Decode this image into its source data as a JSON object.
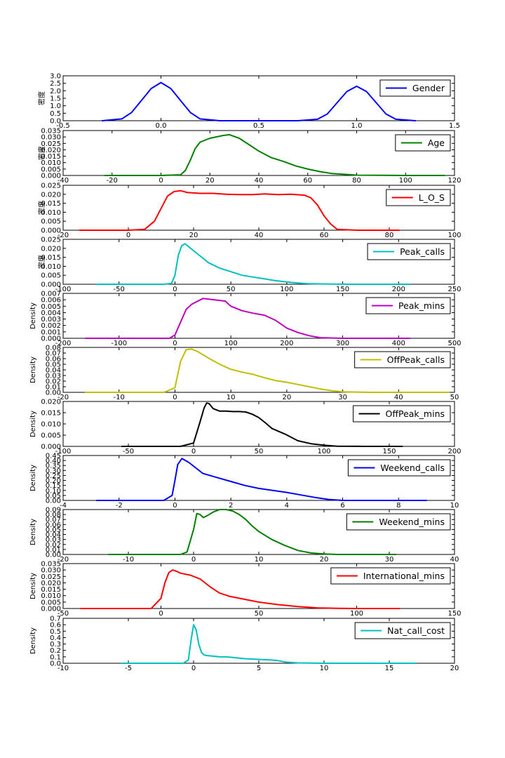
{
  "chart_data": [
    {
      "type": "line",
      "name": "Gender",
      "ylabel": "密度",
      "color": "#0000ff",
      "xlim": [
        -0.5,
        1.5
      ],
      "ylim": [
        0,
        3.0
      ],
      "xticks": [
        -0.5,
        0.0,
        0.5,
        1.0,
        1.5
      ],
      "xtick_labels": [
        "-0.5",
        "0.0",
        "0.5",
        "1.0",
        "1.5"
      ],
      "yticks": [
        0,
        0.5,
        1.0,
        1.5,
        2.0,
        2.5,
        3.0
      ],
      "ytick_labels": [
        "0.0",
        "0.5",
        "1.0",
        "1.5",
        "2.0",
        "2.5",
        "3.0"
      ],
      "legend": "Gender",
      "x": [
        -0.3,
        -0.2,
        -0.15,
        -0.1,
        -0.05,
        0.0,
        0.05,
        0.1,
        0.15,
        0.2,
        0.3,
        0.4,
        0.5,
        0.6,
        0.7,
        0.8,
        0.85,
        0.9,
        0.95,
        1.0,
        1.05,
        1.1,
        1.15,
        1.2,
        1.3
      ],
      "y": [
        0.0,
        0.12,
        0.55,
        1.35,
        2.15,
        2.55,
        2.15,
        1.35,
        0.55,
        0.12,
        0.0,
        0.0,
        0.0,
        0.0,
        0.0,
        0.1,
        0.45,
        1.2,
        1.95,
        2.3,
        1.95,
        1.2,
        0.45,
        0.1,
        0.0
      ]
    },
    {
      "type": "line",
      "name": "Age",
      "ylabel": "密度",
      "color": "#008000",
      "xlim": [
        -40,
        120
      ],
      "ylim": [
        0,
        0.035
      ],
      "xticks": [
        -40,
        -20,
        0,
        20,
        40,
        60,
        80,
        100,
        120
      ],
      "xtick_labels": [
        "-40",
        "-20",
        "0",
        "20",
        "40",
        "60",
        "80",
        "100",
        "120"
      ],
      "yticks": [
        0,
        0.005,
        0.01,
        0.015,
        0.02,
        0.025,
        0.03,
        0.035
      ],
      "ytick_labels": [
        "0.000",
        "0.005",
        "0.010",
        "0.015",
        "0.020",
        "0.025",
        "0.030",
        "0.035"
      ],
      "legend": "Age",
      "x": [
        -23,
        0,
        8,
        10,
        12,
        14,
        16,
        20,
        25,
        28,
        32,
        36,
        40,
        45,
        50,
        55,
        60,
        65,
        70,
        80,
        90,
        100,
        116
      ],
      "y": [
        0,
        0,
        0.0005,
        0.004,
        0.012,
        0.021,
        0.026,
        0.029,
        0.031,
        0.0318,
        0.029,
        0.024,
        0.019,
        0.014,
        0.011,
        0.0075,
        0.005,
        0.003,
        0.0015,
        0.0003,
        0.0001,
        0,
        0
      ]
    },
    {
      "type": "line",
      "name": "L_O_S",
      "ylabel": "密度",
      "color": "#ff0000",
      "xlim": [
        -20,
        100
      ],
      "ylim": [
        0,
        0.025
      ],
      "xticks": [
        -20,
        0,
        20,
        40,
        60,
        80,
        100
      ],
      "xtick_labels": [
        "-20",
        "0",
        "20",
        "40",
        "60",
        "80",
        "100"
      ],
      "yticks": [
        0,
        0.005,
        0.01,
        0.015,
        0.02,
        0.025
      ],
      "ytick_labels": [
        "0.000",
        "0.005",
        "0.010",
        "0.015",
        "0.020",
        "0.025"
      ],
      "legend": "L_O_S",
      "x": [
        -15,
        0,
        5,
        8,
        10,
        12,
        14,
        16,
        18,
        22,
        26,
        30,
        34,
        38,
        42,
        46,
        50,
        54,
        56,
        58,
        60,
        62,
        64,
        70,
        83
      ],
      "y": [
        0,
        0,
        0.0005,
        0.005,
        0.012,
        0.019,
        0.0215,
        0.022,
        0.021,
        0.0205,
        0.0205,
        0.02,
        0.0198,
        0.0198,
        0.0202,
        0.0198,
        0.02,
        0.0195,
        0.018,
        0.014,
        0.008,
        0.0035,
        0.0005,
        0,
        0
      ]
    },
    {
      "type": "line",
      "name": "Peak_calls",
      "ylabel": "密度",
      "color": "#00bfbf",
      "xlim": [
        -100,
        250
      ],
      "ylim": [
        0,
        0.025
      ],
      "xticks": [
        -100,
        -50,
        0,
        50,
        100,
        150,
        200,
        250
      ],
      "xtick_labels": [
        "-100",
        "-50",
        "0",
        "50",
        "100",
        "150",
        "200",
        "250"
      ],
      "yticks": [
        0,
        0.005,
        0.01,
        0.015,
        0.02,
        0.025
      ],
      "ytick_labels": [
        "0.000",
        "0.005",
        "0.010",
        "0.015",
        "0.020",
        "0.025"
      ],
      "legend": "Peak_calls",
      "x": [
        -70,
        -10,
        -3,
        0,
        3,
        6,
        9,
        12,
        18,
        25,
        30,
        40,
        50,
        60,
        70,
        80,
        90,
        100,
        110,
        120,
        140,
        160,
        210
      ],
      "y": [
        0,
        0,
        0.0005,
        0.005,
        0.016,
        0.0215,
        0.0225,
        0.021,
        0.018,
        0.0145,
        0.012,
        0.009,
        0.007,
        0.005,
        0.004,
        0.003,
        0.002,
        0.0013,
        0.0007,
        0.0003,
        0.0001,
        0,
        0
      ]
    },
    {
      "type": "line",
      "name": "Peak_mins",
      "ylabel": "Density",
      "color": "#bf00bf",
      "xlim": [
        -200,
        500
      ],
      "ylim": [
        0,
        0.007
      ],
      "xticks": [
        -200,
        -100,
        0,
        100,
        200,
        300,
        400,
        500
      ],
      "xtick_labels": [
        "-200",
        "-100",
        "0",
        "100",
        "200",
        "300",
        "400",
        "500"
      ],
      "yticks": [
        0,
        0.001,
        0.002,
        0.003,
        0.004,
        0.005,
        0.006,
        0.007
      ],
      "ytick_labels": [
        "0.000",
        "0.001",
        "0.002",
        "0.003",
        "0.004",
        "0.005",
        "0.006",
        "0.007"
      ],
      "legend": "Peak_mins",
      "x": [
        -160,
        -10,
        0,
        10,
        20,
        30,
        50,
        70,
        90,
        100,
        120,
        140,
        160,
        180,
        200,
        220,
        240,
        260,
        300,
        420
      ],
      "y": [
        0,
        0,
        0.0005,
        0.0025,
        0.0045,
        0.0053,
        0.0062,
        0.006,
        0.0058,
        0.005,
        0.0043,
        0.0039,
        0.0036,
        0.0028,
        0.0016,
        0.0009,
        0.0004,
        0.0001,
        0,
        0
      ]
    },
    {
      "type": "line",
      "name": "OffPeak_calls",
      "ylabel": "Density",
      "color": "#bfbf00",
      "xlim": [
        -20,
        50
      ],
      "ylim": [
        0,
        0.08
      ],
      "xticks": [
        -20,
        -10,
        0,
        10,
        20,
        30,
        40,
        50
      ],
      "xtick_labels": [
        "-20",
        "-10",
        "0",
        "10",
        "20",
        "30",
        "40",
        "50"
      ],
      "yticks": [
        0,
        0.01,
        0.02,
        0.03,
        0.04,
        0.05,
        0.06,
        0.07,
        0.08
      ],
      "ytick_labels": [
        "0.00",
        "0.01",
        "0.02",
        "0.03",
        "0.04",
        "0.05",
        "0.06",
        "0.07",
        "0.08"
      ],
      "legend": "OffPeak_calls",
      "x": [
        -16,
        -2,
        0,
        1,
        2,
        3,
        4,
        6,
        8,
        10,
        12,
        14,
        16,
        18,
        20,
        22,
        24,
        26,
        28,
        30,
        35,
        49
      ],
      "y": [
        0,
        0,
        0.008,
        0.055,
        0.076,
        0.077,
        0.073,
        0.061,
        0.05,
        0.041,
        0.036,
        0.032,
        0.026,
        0.021,
        0.018,
        0.014,
        0.01,
        0.006,
        0.003,
        0.001,
        0,
        0
      ]
    },
    {
      "type": "line",
      "name": "OffPeak_mins",
      "ylabel": "Density",
      "color": "#000000",
      "xlim": [
        -100,
        200
      ],
      "ylim": [
        0,
        0.02
      ],
      "xticks": [
        -100,
        -50,
        0,
        50,
        100,
        150,
        200
      ],
      "xtick_labels": [
        "-100",
        "-50",
        "0",
        "50",
        "100",
        "150",
        "200"
      ],
      "yticks": [
        0,
        0.005,
        0.01,
        0.015,
        0.02
      ],
      "ytick_labels": [
        "0.000",
        "0.005",
        "0.010",
        "0.015",
        "0.020"
      ],
      "legend": "OffPeak_mins",
      "x": [
        -55,
        -10,
        0,
        5,
        8,
        10,
        12,
        15,
        20,
        25,
        30,
        35,
        40,
        45,
        50,
        55,
        60,
        70,
        80,
        90,
        100,
        110,
        130,
        160
      ],
      "y": [
        0,
        0,
        0.0015,
        0.011,
        0.017,
        0.0193,
        0.019,
        0.0168,
        0.0157,
        0.0157,
        0.0155,
        0.0155,
        0.0153,
        0.0143,
        0.0128,
        0.0105,
        0.008,
        0.0055,
        0.0025,
        0.0012,
        0.0005,
        0.0001,
        0,
        0
      ]
    },
    {
      "type": "line",
      "name": "Weekend_calls",
      "ylabel": "Density",
      "color": "#0000ff",
      "xlim": [
        -4,
        10
      ],
      "ylim": [
        0,
        0.45
      ],
      "xticks": [
        -4,
        -2,
        0,
        2,
        4,
        6,
        8,
        10
      ],
      "xtick_labels": [
        "-4",
        "-2",
        "0",
        "2",
        "4",
        "6",
        "8",
        "10"
      ],
      "yticks": [
        0,
        0.05,
        0.1,
        0.15,
        0.2,
        0.25,
        0.3,
        0.35,
        0.4,
        0.45
      ],
      "ytick_labels": [
        "0.00",
        "0.05",
        "0.10",
        "0.15",
        "0.20",
        "0.25",
        "0.30",
        "0.35",
        "0.40",
        "0.45"
      ],
      "legend": "Weekend_calls",
      "x": [
        -2.8,
        -0.4,
        -0.1,
        0,
        0.1,
        0.25,
        0.5,
        1,
        1.5,
        2,
        2.5,
        3,
        3.5,
        4,
        4.5,
        5,
        5.5,
        6,
        7,
        9
      ],
      "y": [
        0,
        0,
        0.05,
        0.2,
        0.36,
        0.42,
        0.38,
        0.27,
        0.23,
        0.19,
        0.15,
        0.12,
        0.1,
        0.08,
        0.055,
        0.03,
        0.01,
        0,
        0,
        0
      ]
    },
    {
      "type": "line",
      "name": "Weekend_mins",
      "ylabel": "Density",
      "color": "#008000",
      "xlim": [
        -20,
        40
      ],
      "ylim": [
        0,
        0.09
      ],
      "xticks": [
        -20,
        -10,
        0,
        10,
        20,
        30,
        40
      ],
      "xtick_labels": [
        "-20",
        "-10",
        "0",
        "10",
        "20",
        "30",
        "40"
      ],
      "yticks": [
        0,
        0.01,
        0.02,
        0.03,
        0.04,
        0.05,
        0.06,
        0.07,
        0.08,
        0.09
      ],
      "ytick_labels": [
        "0.00",
        "0.01",
        "0.02",
        "0.03",
        "0.04",
        "0.05",
        "0.06",
        "0.07",
        "0.08",
        "0.09"
      ],
      "legend": "Weekend_mins",
      "x": [
        -13,
        -2,
        -1,
        0,
        0.5,
        1,
        1.5,
        2,
        3,
        4,
        5,
        6,
        7,
        8,
        9,
        10,
        12,
        14,
        16,
        18,
        20,
        22,
        31
      ],
      "y": [
        0,
        0,
        0.005,
        0.05,
        0.082,
        0.08,
        0.074,
        0.077,
        0.085,
        0.09,
        0.09,
        0.087,
        0.08,
        0.07,
        0.057,
        0.046,
        0.03,
        0.018,
        0.008,
        0.003,
        0.001,
        0,
        0
      ]
    },
    {
      "type": "line",
      "name": "International_mins",
      "ylabel": "Density",
      "color": "#ff0000",
      "xlim": [
        -50,
        150
      ],
      "ylim": [
        0,
        0.035
      ],
      "xticks": [
        -50,
        0,
        50,
        100,
        150
      ],
      "xtick_labels": [
        "-50",
        "0",
        "50",
        "100",
        "150"
      ],
      "yticks": [
        0,
        0.005,
        0.01,
        0.015,
        0.02,
        0.025,
        0.03,
        0.035
      ],
      "ytick_labels": [
        "0.000",
        "0.005",
        "0.010",
        "0.015",
        "0.020",
        "0.025",
        "0.030",
        "0.035"
      ],
      "legend": "International_mins",
      "x": [
        -41,
        -5,
        0,
        2,
        4,
        6,
        8,
        10,
        15,
        20,
        25,
        30,
        35,
        40,
        50,
        60,
        70,
        80,
        90,
        100,
        122
      ],
      "y": [
        0,
        0,
        0.008,
        0.02,
        0.028,
        0.03,
        0.029,
        0.0275,
        0.026,
        0.023,
        0.017,
        0.012,
        0.0095,
        0.008,
        0.005,
        0.003,
        0.0015,
        0.0005,
        0.0001,
        0,
        0
      ]
    },
    {
      "type": "line",
      "name": "Nat_call_cost",
      "ylabel": "Density",
      "color": "#00bfbf",
      "xlim": [
        -10,
        20
      ],
      "ylim": [
        0,
        0.7
      ],
      "xticks": [
        -10,
        -5,
        0,
        5,
        10,
        15,
        20
      ],
      "xtick_labels": [
        "-10",
        "-5",
        "0",
        "5",
        "10",
        "15",
        "20"
      ],
      "yticks": [
        0,
        0.1,
        0.2,
        0.3,
        0.4,
        0.5,
        0.6,
        0.7
      ],
      "ytick_labels": [
        "0.0",
        "0.1",
        "0.2",
        "0.3",
        "0.4",
        "0.5",
        "0.6",
        "0.7"
      ],
      "legend": "Nat_call_cost",
      "x": [
        -5.5,
        -0.8,
        -0.4,
        -0.2,
        0,
        0.2,
        0.4,
        0.6,
        0.8,
        1,
        1.5,
        2,
        2.5,
        3,
        4,
        5,
        6,
        6.5,
        7,
        8,
        10,
        17
      ],
      "y": [
        0,
        0,
        0.05,
        0.35,
        0.6,
        0.52,
        0.3,
        0.17,
        0.13,
        0.12,
        0.11,
        0.1,
        0.1,
        0.09,
        0.07,
        0.06,
        0.05,
        0.04,
        0.02,
        0.005,
        0,
        0
      ]
    }
  ]
}
